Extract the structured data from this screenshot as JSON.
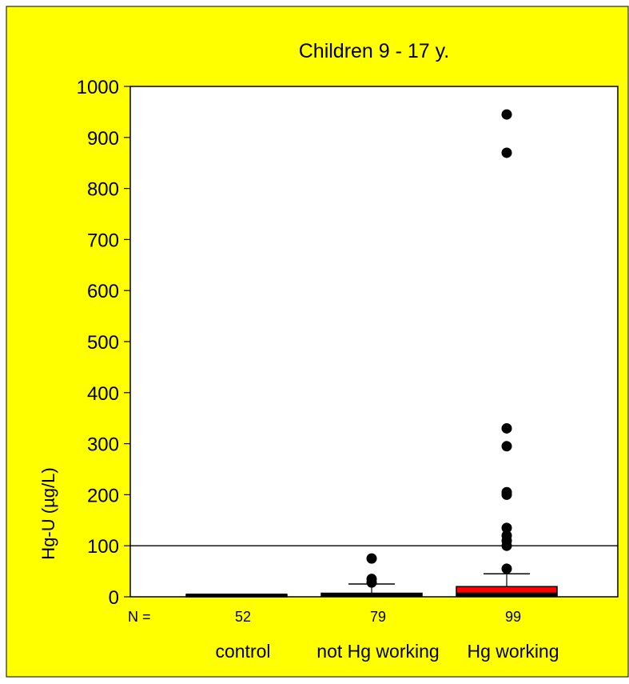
{
  "chart_data": {
    "type": "boxplot",
    "title": "Children 9 - 17 y.",
    "ylabel": "Hg-U (µg/L)",
    "ylim": [
      0,
      1000
    ],
    "yticks": [
      0,
      100,
      200,
      300,
      400,
      500,
      600,
      700,
      800,
      900,
      1000
    ],
    "n_label": "N =",
    "reference_line": 100,
    "grid": false,
    "legend": "none",
    "colors": {
      "background": "#ffff00",
      "plot_area": "#ffffff",
      "box_fill": "#ff0000",
      "median": "#000000",
      "outlier": "#000000"
    },
    "groups": [
      {
        "category": "control",
        "n": "52",
        "box": {
          "q1": 0,
          "median": 1,
          "q3": 2
        },
        "whisker_high": 3,
        "outliers": []
      },
      {
        "category": "not Hg working",
        "n": "79",
        "box": {
          "q1": 1,
          "median": 3,
          "q3": 7
        },
        "whisker_high": 25,
        "outliers": [
          28,
          35,
          75
        ]
      },
      {
        "category": "Hg working",
        "n": "99",
        "box": {
          "q1": 2,
          "median": 8,
          "q3": 20
        },
        "whisker_high": 45,
        "outliers": [
          55,
          100,
          110,
          120,
          135,
          200,
          205,
          295,
          330,
          870,
          945
        ]
      }
    ]
  }
}
